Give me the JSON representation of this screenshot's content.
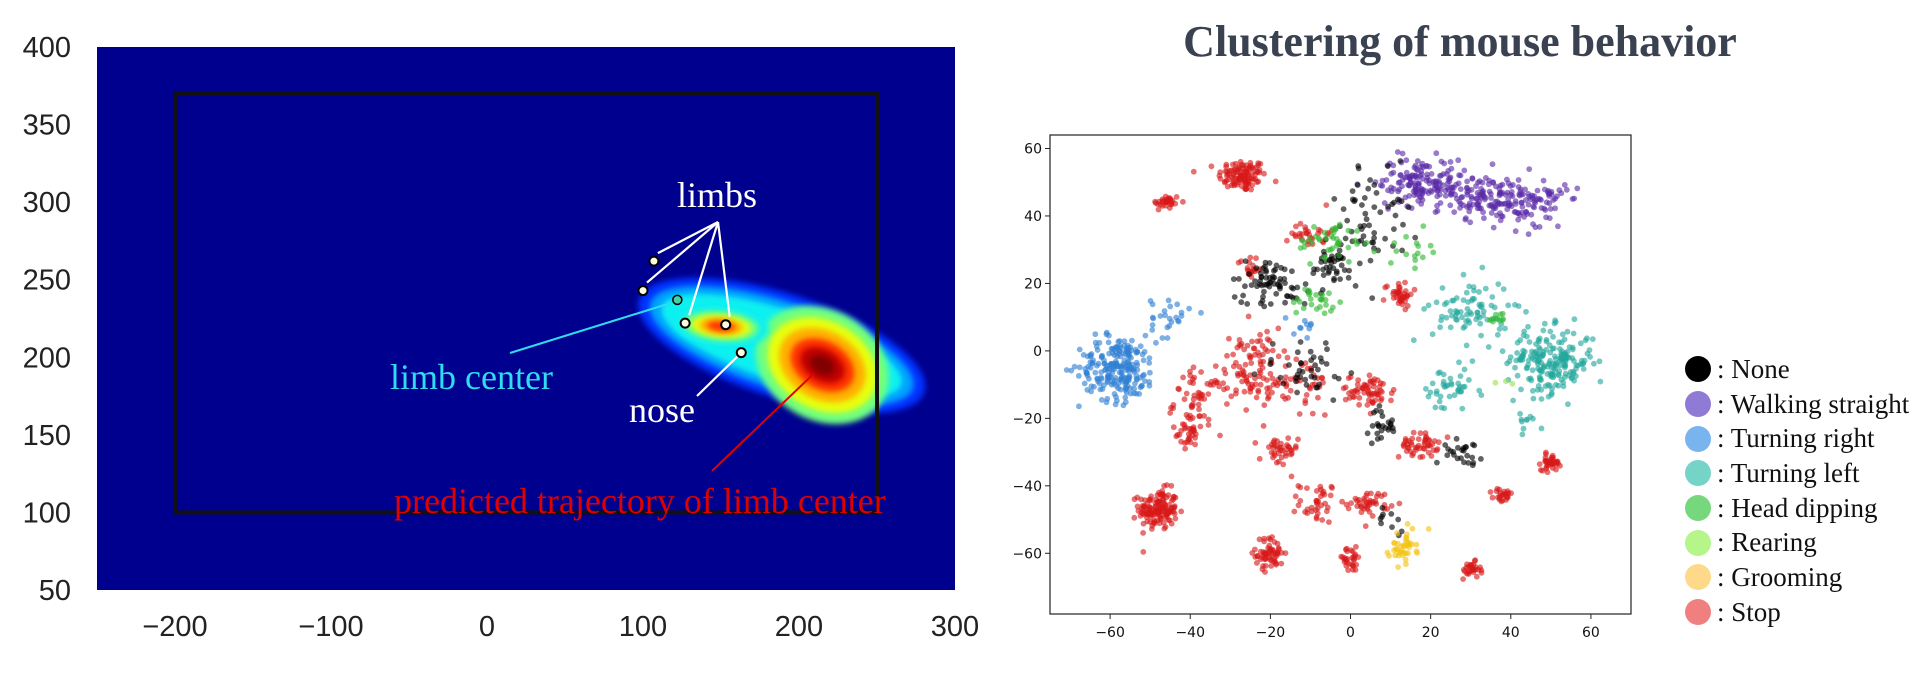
{
  "chart_data": [
    {
      "type": "heatmap",
      "title": "",
      "xlabel": "",
      "ylabel": "",
      "xlim": [
        -250,
        300
      ],
      "ylim": [
        50,
        400
      ],
      "x_ticks": [
        -200,
        -100,
        0,
        100,
        200,
        300
      ],
      "y_ticks": [
        50,
        100,
        150,
        200,
        250,
        300,
        350,
        400
      ],
      "x_tick_labels": [
        "−200",
        "−100",
        "0",
        "100",
        "200",
        "300"
      ],
      "y_tick_labels": [
        "50",
        "100",
        "150",
        "200",
        "250",
        "300",
        "350",
        "400"
      ],
      "colormap": "jet",
      "background_color": "#00008f",
      "arena_rectangle": {
        "x_min": -200,
        "x_max": 250,
        "y_min": 100,
        "y_max": 370
      },
      "density_peaks": [
        {
          "x": 215,
          "y": 195,
          "intensity": 1.0
        },
        {
          "x": 150,
          "y": 220,
          "intensity": 0.75
        }
      ],
      "limb_points": [
        {
          "x": 100,
          "y": 243,
          "color": "#fffbe0"
        },
        {
          "x": 107,
          "y": 262,
          "color": "#fffbe0"
        },
        {
          "x": 127,
          "y": 222,
          "color": "#fffbe0"
        },
        {
          "x": 153,
          "y": 221,
          "color": "#fffbe0"
        }
      ],
      "limb_center_point": {
        "x": 122,
        "y": 237,
        "color": "#3fd6a4"
      },
      "nose_point": {
        "x": 163,
        "y": 203,
        "color": "#fffbe0"
      },
      "annotations": {
        "limbs": {
          "text": "limbs",
          "color": "#ffffff"
        },
        "limb_center": {
          "text": "limb center",
          "color": "#2fdcf0"
        },
        "nose": {
          "text": "nose",
          "color": "#ffffff"
        },
        "trajectory": {
          "text": "predicted trajectory of limb center",
          "color": "#e00000"
        }
      }
    },
    {
      "type": "scatter",
      "title": "Clustering of mouse behavior",
      "xlabel": "",
      "ylabel": "",
      "xlim": [
        -75,
        70
      ],
      "ylim": [
        -78,
        64
      ],
      "x_ticks": [
        -60,
        -40,
        -20,
        0,
        20,
        40,
        60
      ],
      "y_ticks": [
        -60,
        -40,
        -20,
        0,
        20,
        40,
        60
      ],
      "x_tick_labels": [
        "−60",
        "−40",
        "−20",
        "0",
        "20",
        "40",
        "60"
      ],
      "y_tick_labels": [
        "−60",
        "−40",
        "−20",
        "0",
        "20",
        "40",
        "60"
      ],
      "legend_position": "right",
      "series": [
        {
          "name": "None",
          "color": "#000000",
          "clusters": [
            [
              5,
              40,
              8,
              14,
              60
            ],
            [
              -20,
              20,
              8,
              6,
              70
            ],
            [
              -5,
              25,
              6,
              5,
              40
            ],
            [
              8,
              -22,
              3,
              4,
              25
            ],
            [
              28,
              -30,
              4,
              3,
              25
            ],
            [
              10,
              -50,
              3,
              3,
              10
            ],
            [
              -10,
              -5,
              10,
              8,
              40
            ]
          ]
        },
        {
          "name": "Walking straight",
          "color": "#5a2aa8",
          "clusters": [
            [
              18,
              50,
              9,
              6,
              160
            ],
            [
              35,
              45,
              8,
              6,
              130
            ],
            [
              48,
              44,
              5,
              6,
              60
            ]
          ]
        },
        {
          "name": "Turning right",
          "color": "#2f7fd4",
          "clusters": [
            [
              -58,
              -5,
              8,
              8,
              220
            ],
            [
              -45,
              10,
              4,
              5,
              25
            ],
            [
              -12,
              8,
              3,
              3,
              10
            ]
          ]
        },
        {
          "name": "Turning left",
          "color": "#22a89c",
          "clusters": [
            [
              50,
              -3,
              9,
              8,
              200
            ],
            [
              30,
              12,
              8,
              8,
              80
            ],
            [
              25,
              -12,
              6,
              6,
              40
            ],
            [
              45,
              -20,
              3,
              3,
              10
            ]
          ]
        },
        {
          "name": "Head dipping",
          "color": "#2fb82f",
          "clusters": [
            [
              -5,
              32,
              7,
              5,
              40
            ],
            [
              -8,
              15,
              6,
              4,
              25
            ],
            [
              37,
              10,
              2,
              2,
              10
            ],
            [
              15,
              30,
              4,
              4,
              15
            ]
          ]
        },
        {
          "name": "Rearing",
          "color": "#9be04f",
          "clusters": [
            [
              40,
              -10,
              2,
              2,
              3
            ]
          ]
        },
        {
          "name": "Grooming",
          "color": "#f4c10f",
          "clusters": [
            [
              13,
              -58,
              3,
              4,
              40
            ]
          ]
        },
        {
          "name": "Stop",
          "color": "#d81818",
          "clusters": [
            [
              -27,
              52,
              5,
              4,
              110
            ],
            [
              -46,
              44,
              3,
              2,
              30
            ],
            [
              -48,
              -47,
              4,
              5,
              140
            ],
            [
              -20,
              -60,
              3,
              4,
              60
            ],
            [
              -25,
              -5,
              6,
              10,
              80
            ],
            [
              -38,
              -15,
              5,
              8,
              60
            ],
            [
              5,
              -12,
              5,
              4,
              60
            ],
            [
              17,
              -28,
              4,
              3,
              50
            ],
            [
              5,
              -45,
              4,
              3,
              40
            ],
            [
              -8,
              -45,
              4,
              5,
              40
            ],
            [
              -18,
              -30,
              4,
              4,
              40
            ],
            [
              0,
              -62,
              3,
              3,
              30
            ],
            [
              50,
              -33,
              2,
              2,
              40
            ],
            [
              30,
              -65,
              2,
              2,
              30
            ],
            [
              38,
              -43,
              2,
              2,
              25
            ],
            [
              12,
              17,
              3,
              3,
              40
            ],
            [
              -10,
              35,
              4,
              4,
              30
            ],
            [
              -40,
              -25,
              3,
              3,
              25
            ],
            [
              -25,
              25,
              3,
              3,
              20
            ],
            [
              -15,
              -10,
              10,
              8,
              60
            ]
          ]
        }
      ]
    }
  ]
}
